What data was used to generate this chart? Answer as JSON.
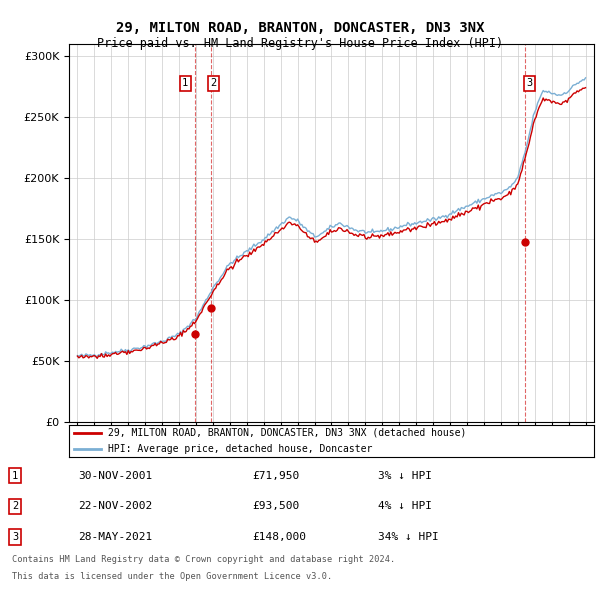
{
  "title": "29, MILTON ROAD, BRANTON, DONCASTER, DN3 3NX",
  "subtitle": "Price paid vs. HM Land Registry's House Price Index (HPI)",
  "legend_line1": "29, MILTON ROAD, BRANTON, DONCASTER, DN3 3NX (detached house)",
  "legend_line2": "HPI: Average price, detached house, Doncaster",
  "transactions": [
    {
      "label": "1",
      "date": "30-NOV-2001",
      "price": 71950,
      "x": 2001.917,
      "pct": "3%"
    },
    {
      "label": "2",
      "date": "22-NOV-2002",
      "price": 93500,
      "x": 2002.896,
      "pct": "4%"
    },
    {
      "label": "3",
      "date": "28-MAY-2021",
      "price": 148000,
      "x": 2021.406,
      "pct": "34%"
    }
  ],
  "footer_line1": "Contains HM Land Registry data © Crown copyright and database right 2024.",
  "footer_line2": "This data is licensed under the Open Government Licence v3.0.",
  "ylim": [
    0,
    310000
  ],
  "xlim": [
    1994.5,
    2025.5
  ],
  "red_color": "#cc0000",
  "blue_color": "#7bafd4",
  "background_color": "#ffffff",
  "grid_color": "#cccccc",
  "hpi_control_points": [
    [
      1995.0,
      54000
    ],
    [
      1996.0,
      55000
    ],
    [
      1997.0,
      57000
    ],
    [
      1998.0,
      59000
    ],
    [
      1999.0,
      62000
    ],
    [
      2000.0,
      66000
    ],
    [
      2001.0,
      72000
    ],
    [
      2002.0,
      85000
    ],
    [
      2003.0,
      110000
    ],
    [
      2004.0,
      130000
    ],
    [
      2005.0,
      140000
    ],
    [
      2006.0,
      150000
    ],
    [
      2007.0,
      162000
    ],
    [
      2007.5,
      168000
    ],
    [
      2008.0,
      165000
    ],
    [
      2008.5,
      158000
    ],
    [
      2009.0,
      152000
    ],
    [
      2009.5,
      155000
    ],
    [
      2010.0,
      160000
    ],
    [
      2010.5,
      163000
    ],
    [
      2011.0,
      160000
    ],
    [
      2011.5,
      157000
    ],
    [
      2012.0,
      156000
    ],
    [
      2012.5,
      155000
    ],
    [
      2013.0,
      157000
    ],
    [
      2013.5,
      158000
    ],
    [
      2014.0,
      160000
    ],
    [
      2014.5,
      162000
    ],
    [
      2015.0,
      163000
    ],
    [
      2015.5,
      165000
    ],
    [
      2016.0,
      166000
    ],
    [
      2016.5,
      168000
    ],
    [
      2017.0,
      171000
    ],
    [
      2017.5,
      174000
    ],
    [
      2018.0,
      177000
    ],
    [
      2018.5,
      180000
    ],
    [
      2019.0,
      183000
    ],
    [
      2019.5,
      186000
    ],
    [
      2020.0,
      188000
    ],
    [
      2020.5,
      192000
    ],
    [
      2021.0,
      200000
    ],
    [
      2021.5,
      225000
    ],
    [
      2022.0,
      255000
    ],
    [
      2022.5,
      272000
    ],
    [
      2023.0,
      270000
    ],
    [
      2023.5,
      268000
    ],
    [
      2024.0,
      272000
    ],
    [
      2024.5,
      278000
    ],
    [
      2025.0,
      282000
    ]
  ]
}
